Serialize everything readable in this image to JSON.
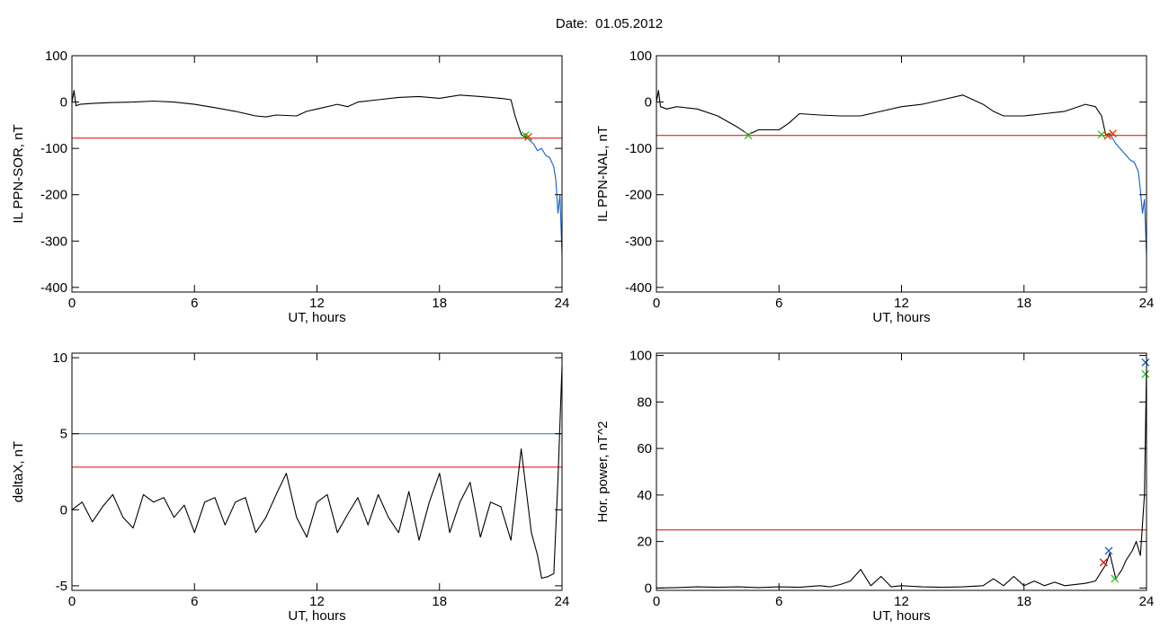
{
  "header": {
    "date_label": "Date:",
    "date_value": "01.05.2012"
  },
  "chart_data": [
    {
      "type": "line",
      "title": "",
      "xlabel": "UT, hours",
      "ylabel": "IL PPN-SOR, nT",
      "xlim": [
        0,
        24
      ],
      "ylim": [
        -410,
        100
      ],
      "xticks": [
        0,
        6,
        12,
        18,
        24
      ],
      "yticks": [
        -400,
        -300,
        -200,
        -100,
        0,
        100
      ],
      "threshold_lines": [
        {
          "y": -78,
          "color": "#e00000"
        }
      ],
      "series": [
        {
          "color": "#000000",
          "x": [
            0,
            0.1,
            0.2,
            0.4,
            1,
            2,
            3,
            4,
            5,
            6,
            7,
            8,
            9,
            9.5,
            10,
            11,
            11.5,
            12,
            13,
            13.5,
            14,
            15,
            16,
            17,
            18,
            19,
            20,
            21,
            21.5,
            21.7,
            22,
            22.3
          ],
          "y": [
            0,
            25,
            -8,
            -5,
            -3,
            -1,
            0,
            2,
            0,
            -5,
            -12,
            -20,
            -30,
            -32,
            -28,
            -30,
            -20,
            -15,
            -5,
            -10,
            0,
            5,
            10,
            12,
            8,
            15,
            12,
            8,
            5,
            -30,
            -70,
            -78
          ]
        },
        {
          "color": "#1060c8",
          "x": [
            22.3,
            22.6,
            22.8,
            23,
            23.2,
            23.4,
            23.6,
            23.7,
            23.8,
            23.9,
            24
          ],
          "y": [
            -78,
            -90,
            -105,
            -100,
            -115,
            -120,
            -140,
            -170,
            -240,
            -200,
            -330
          ]
        }
      ],
      "markers": [
        {
          "x": 22.2,
          "y": -72,
          "color": "#20c020"
        },
        {
          "x": 22.35,
          "y": -75,
          "color": "#e04000"
        }
      ]
    },
    {
      "type": "line",
      "title": "",
      "xlabel": "UT, hours",
      "ylabel": "IL PPN-NAL, nT",
      "xlim": [
        0,
        24
      ],
      "ylim": [
        -410,
        100
      ],
      "xticks": [
        0,
        6,
        12,
        18,
        24
      ],
      "yticks": [
        -400,
        -300,
        -200,
        -100,
        0,
        100
      ],
      "threshold_lines": [
        {
          "y": -72,
          "color": "#e00000"
        }
      ],
      "series": [
        {
          "color": "#000000",
          "x": [
            0,
            0.1,
            0.2,
            0.5,
            1,
            2,
            3,
            4,
            4.5,
            5,
            6,
            6.5,
            7,
            8,
            9,
            10,
            11,
            12,
            13,
            14,
            15,
            16,
            16.5,
            17,
            18,
            19,
            20,
            21,
            21.5,
            21.8,
            22,
            22.2
          ],
          "y": [
            0,
            25,
            -10,
            -15,
            -10,
            -15,
            -30,
            -55,
            -70,
            -60,
            -60,
            -45,
            -25,
            -28,
            -30,
            -30,
            -20,
            -10,
            -5,
            5,
            15,
            -5,
            -20,
            -30,
            -30,
            -25,
            -20,
            -5,
            -10,
            -30,
            -70,
            -68
          ]
        },
        {
          "color": "#1060c8",
          "x": [
            22.2,
            22.5,
            22.8,
            23,
            23.2,
            23.4,
            23.6,
            23.7,
            23.8,
            23.9,
            24
          ],
          "y": [
            -68,
            -90,
            -105,
            -115,
            -125,
            -130,
            -150,
            -190,
            -240,
            -210,
            -330
          ]
        }
      ],
      "markers": [
        {
          "x": 4.5,
          "y": -72,
          "color": "#20c020"
        },
        {
          "x": 21.8,
          "y": -70,
          "color": "#20c020"
        },
        {
          "x": 22.1,
          "y": -73,
          "color": "#e04000"
        },
        {
          "x": 22.35,
          "y": -68,
          "color": "#e04000"
        }
      ]
    },
    {
      "type": "line",
      "title": "",
      "xlabel": "UT, hours",
      "ylabel": "deltaX, nT",
      "xlim": [
        0,
        24
      ],
      "ylim": [
        -5.3,
        10.3
      ],
      "xticks": [
        0,
        6,
        12,
        18,
        24
      ],
      "yticks": [
        -5,
        0,
        5,
        10
      ],
      "threshold_lines": [
        {
          "y": 5,
          "color": "#1a7fa0"
        },
        {
          "y": 2.8,
          "color": "#e00000"
        }
      ],
      "series": [
        {
          "color": "#000000",
          "x": [
            0,
            0.5,
            1,
            1.5,
            2,
            2.5,
            3,
            3.5,
            4,
            4.5,
            5,
            5.5,
            6,
            6.5,
            7,
            7.5,
            8,
            8.5,
            9,
            9.5,
            10,
            10.5,
            11,
            11.5,
            12,
            12.5,
            13,
            13.5,
            14,
            14.5,
            15,
            15.5,
            16,
            16.5,
            17,
            17.5,
            18,
            18.5,
            19,
            19.5,
            20,
            20.5,
            21,
            21.5,
            22,
            22.5,
            22.8,
            23,
            23.3,
            23.6,
            23.8,
            24
          ],
          "y": [
            0,
            0.5,
            -0.8,
            0.2,
            1.0,
            -0.5,
            -1.2,
            1.0,
            0.5,
            0.8,
            -0.5,
            0.3,
            -1.5,
            0.5,
            0.8,
            -1.0,
            0.5,
            0.8,
            -1.5,
            -0.5,
            1.0,
            2.4,
            -0.5,
            -1.8,
            0.5,
            1.0,
            -1.5,
            -0.3,
            0.8,
            -1.0,
            1.0,
            -0.5,
            -1.5,
            1.2,
            -2.0,
            0.5,
            2.4,
            -1.5,
            0.5,
            1.8,
            -1.8,
            0.5,
            0.2,
            -2.0,
            4.0,
            -1.5,
            -3.0,
            -4.5,
            -4.4,
            -4.2,
            2.0,
            9.5
          ]
        }
      ],
      "markers": []
    },
    {
      "type": "line",
      "title": "",
      "xlabel": "UT, hours",
      "ylabel": "Hor. power, nT^2",
      "xlim": [
        0,
        24
      ],
      "ylim": [
        -1,
        101
      ],
      "xticks": [
        0,
        6,
        12,
        18,
        24
      ],
      "yticks": [
        0,
        20,
        40,
        60,
        80,
        100
      ],
      "threshold_lines": [
        {
          "y": 25,
          "color": "#e00000"
        }
      ],
      "series": [
        {
          "color": "#000000",
          "x": [
            0,
            1,
            2,
            3,
            4,
            5,
            6,
            7,
            8,
            8.5,
            9,
            9.5,
            10,
            10.5,
            11,
            11.5,
            12,
            13,
            14,
            15,
            16,
            16.5,
            17,
            17.5,
            18,
            18.5,
            19,
            19.5,
            20,
            21,
            21.5,
            22,
            22.2,
            22.5,
            22.8,
            23,
            23.3,
            23.5,
            23.7,
            23.9,
            24
          ],
          "y": [
            0,
            0.2,
            0.5,
            0.3,
            0.5,
            0.2,
            0.5,
            0.3,
            1.0,
            0.5,
            1.5,
            3.0,
            8.0,
            1.0,
            5.0,
            0.5,
            1.0,
            0.5,
            0.3,
            0.5,
            1.0,
            4.0,
            1.0,
            5.0,
            1.0,
            3.0,
            1.0,
            2.5,
            1.0,
            2.0,
            3.0,
            10.0,
            15.0,
            4.0,
            8.0,
            12.0,
            16.0,
            20.0,
            14.0,
            40.0,
            95.0
          ]
        }
      ],
      "markers": [
        {
          "x": 21.9,
          "y": 11,
          "color": "#e00000"
        },
        {
          "x": 22.15,
          "y": 16,
          "color": "#1060c8"
        },
        {
          "x": 22.45,
          "y": 4,
          "color": "#20c020"
        },
        {
          "x": 23.95,
          "y": 97,
          "color": "#1060c8"
        },
        {
          "x": 23.95,
          "y": 92,
          "color": "#20c020"
        }
      ]
    }
  ]
}
